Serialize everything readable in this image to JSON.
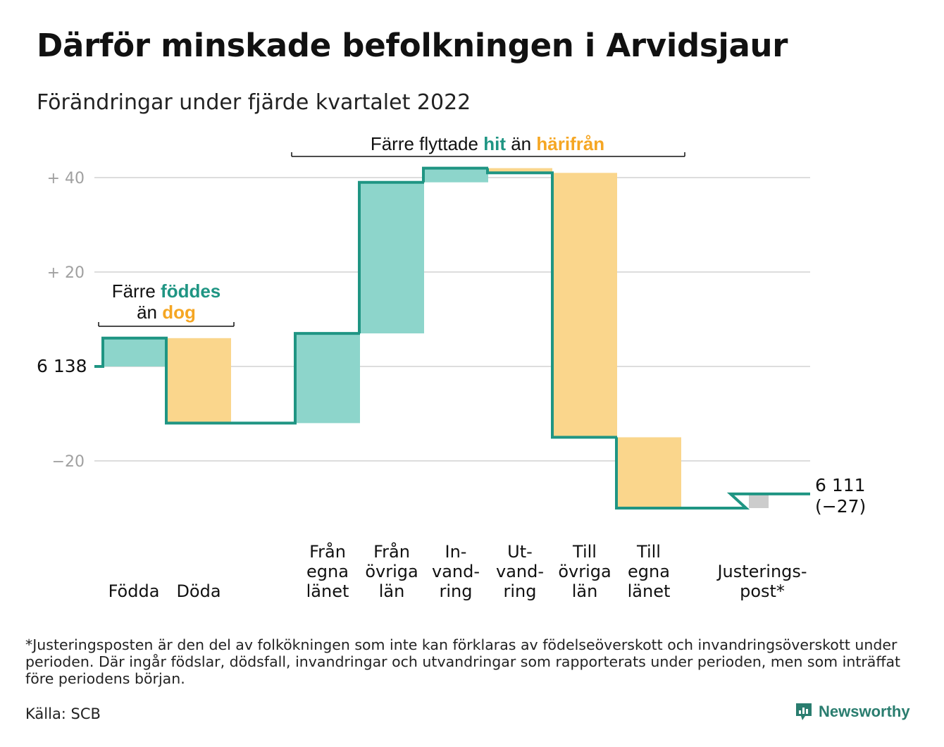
{
  "title": "Därför minskade befolkningen i Arvidsjaur",
  "subtitle": "Förändringar under fjärde kvartalet 2022",
  "footnote": "*Justeringsposten är den del av folkökningen som inte kan förklaras av födelseöverskott och invandringsöverskott under perioden. Där ingår födslar, dödsfall, invandringar och utvandringar som rapporterats under perioden, men som inträffat före periodens början.",
  "source": "Källa: SCB",
  "brand": "Newsworthy",
  "colors": {
    "line": "#1f9583",
    "increase": "#8dd5cb",
    "decrease": "#fad68c",
    "adjustment": "#cccccc",
    "teal_text": "#1f9583",
    "orange_text": "#f5a623",
    "grid": "#dddddd",
    "axis_text": "#a0a0a0"
  },
  "chart_data": {
    "type": "waterfall",
    "start": {
      "label": "6 138",
      "value": 6138
    },
    "end": {
      "label": "6 111",
      "change_label": "(−27)",
      "value": 6111
    },
    "yaxis": {
      "ticks": [
        40,
        20,
        0,
        -20
      ],
      "tick_labels": [
        "+ 40",
        "+ 20",
        "",
        "−20"
      ],
      "range": [
        -28,
        44
      ]
    },
    "steps": [
      {
        "label": [
          "Födda"
        ],
        "change": 6,
        "kind": "increase"
      },
      {
        "label": [
          "Döda"
        ],
        "change": -18,
        "kind": "decrease"
      },
      {
        "label": [
          "Från",
          "egna",
          "länet"
        ],
        "change": 19,
        "kind": "increase"
      },
      {
        "label": [
          "Från",
          "övriga",
          "län"
        ],
        "change": 32,
        "kind": "increase"
      },
      {
        "label": [
          "In-",
          "vand-",
          "ring"
        ],
        "change": 3,
        "kind": "increase"
      },
      {
        "label": [
          "Ut-",
          "vand-",
          "ring"
        ],
        "change": -1,
        "kind": "decrease"
      },
      {
        "label": [
          "Till",
          "övriga",
          "län"
        ],
        "change": -56,
        "kind": "decrease"
      },
      {
        "label": [
          "Till",
          "egna",
          "länet"
        ],
        "change": -15,
        "kind": "decrease"
      },
      {
        "label": [
          "Justerings-",
          "post*"
        ],
        "change": 3,
        "kind": "adjustment"
      }
    ],
    "annotations": [
      {
        "parts": [
          [
            "Färre ",
            "plain"
          ],
          [
            "föddes",
            "teal"
          ]
        ],
        "line2": [
          [
            "än ",
            "plain"
          ],
          [
            "dog",
            "orange"
          ]
        ]
      },
      {
        "parts": [
          [
            "Färre flyttade ",
            "plain"
          ],
          [
            "hit",
            "teal"
          ],
          [
            " än ",
            "plain"
          ],
          [
            "härifrån",
            "orange"
          ]
        ]
      }
    ]
  }
}
